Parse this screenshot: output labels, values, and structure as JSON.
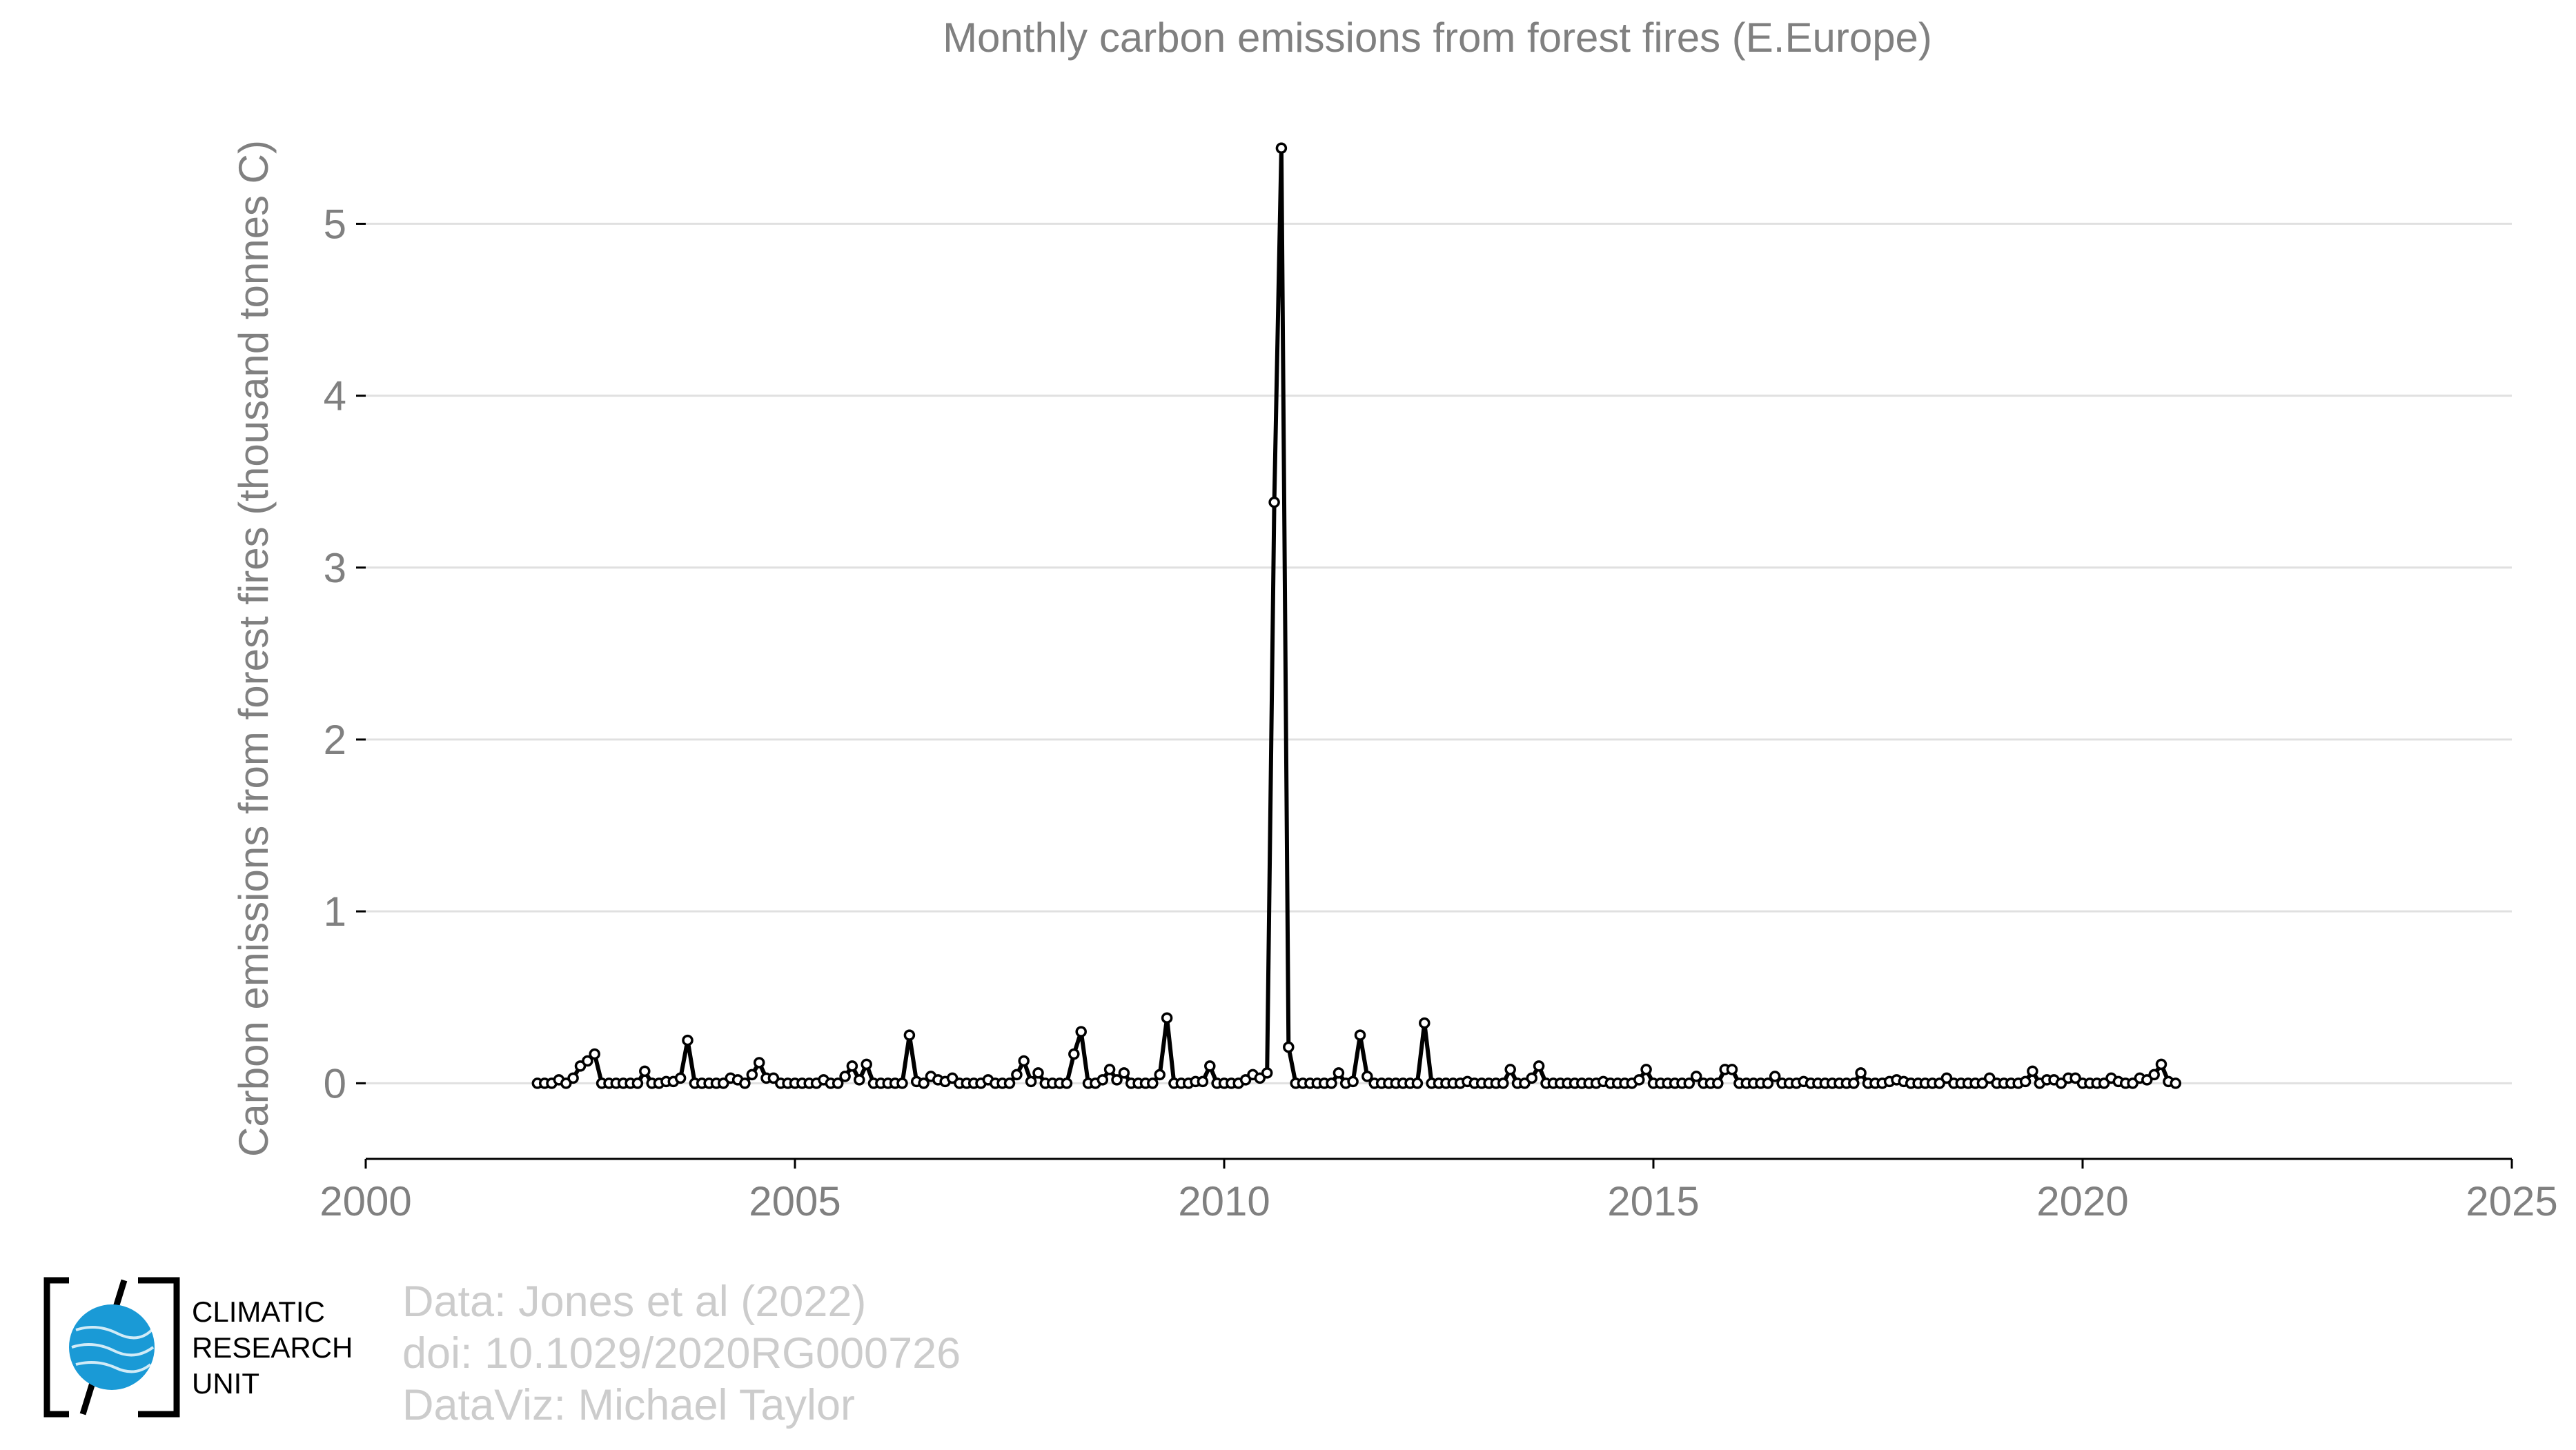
{
  "chart_data": {
    "type": "line",
    "title": "Monthly carbon emissions from forest fires (E.Europe)",
    "xlabel": "",
    "ylabel": "Carbon emissions from forest fires (thousand tonnes C)",
    "xlim": [
      2000,
      2025
    ],
    "ylim": [
      -0.44,
      5.7
    ],
    "x_ticks": [
      2000,
      2005,
      2010,
      2015,
      2020,
      2025
    ],
    "y_ticks": [
      0,
      1,
      2,
      3,
      4,
      5
    ],
    "grid": "horizontal",
    "legend": "none",
    "line_color": "#000000",
    "marker_fill": "#ffffff",
    "x_start": 2002.0,
    "x_step_months": 1,
    "values": [
      0.0,
      0.0,
      0.0,
      0.02,
      0.0,
      0.03,
      0.1,
      0.13,
      0.17,
      0.0,
      0.0,
      0.0,
      0.0,
      0.0,
      0.0,
      0.07,
      0.0,
      0.0,
      0.01,
      0.01,
      0.03,
      0.25,
      0.0,
      0.0,
      0.0,
      0.0,
      0.0,
      0.03,
      0.02,
      0.0,
      0.05,
      0.12,
      0.03,
      0.03,
      0.0,
      0.0,
      0.0,
      0.0,
      0.0,
      0.0,
      0.02,
      0.0,
      0.0,
      0.04,
      0.1,
      0.02,
      0.11,
      0.0,
      0.0,
      0.0,
      0.0,
      0.0,
      0.28,
      0.01,
      0.0,
      0.04,
      0.02,
      0.01,
      0.03,
      0.0,
      0.0,
      0.0,
      0.0,
      0.02,
      0.0,
      0.0,
      0.0,
      0.05,
      0.13,
      0.01,
      0.06,
      0.0,
      0.0,
      0.0,
      0.0,
      0.17,
      0.3,
      0.0,
      0.0,
      0.02,
      0.08,
      0.02,
      0.06,
      0.0,
      0.0,
      0.0,
      0.0,
      0.05,
      0.38,
      0.0,
      0.0,
      0.0,
      0.01,
      0.01,
      0.1,
      0.0,
      0.0,
      0.0,
      0.0,
      0.02,
      0.05,
      0.03,
      0.06,
      3.38,
      5.44,
      0.21,
      0.0,
      0.0,
      0.0,
      0.0,
      0.0,
      0.0,
      0.06,
      0.0,
      0.01,
      0.28,
      0.04,
      0.0,
      0.0,
      0.0,
      0.0,
      0.0,
      0.0,
      0.0,
      0.35,
      0.0,
      0.0,
      0.0,
      0.0,
      0.0,
      0.01,
      0.0,
      0.0,
      0.0,
      0.0,
      0.0,
      0.08,
      0.0,
      0.0,
      0.03,
      0.1,
      0.0,
      0.0,
      0.0,
      0.0,
      0.0,
      0.0,
      0.0,
      0.0,
      0.01,
      0.0,
      0.0,
      0.0,
      0.0,
      0.02,
      0.08,
      0.0,
      0.0,
      0.0,
      0.0,
      0.0,
      0.0,
      0.04,
      0.0,
      0.0,
      0.0,
      0.08,
      0.08,
      0.0,
      0.0,
      0.0,
      0.0,
      0.0,
      0.04,
      0.0,
      0.0,
      0.0,
      0.01,
      0.0,
      0.0,
      0.0,
      0.0,
      0.0,
      0.0,
      0.0,
      0.06,
      0.0,
      0.0,
      0.0,
      0.01,
      0.02,
      0.01,
      0.0,
      0.0,
      0.0,
      0.0,
      0.0,
      0.03,
      0.0,
      0.0,
      0.0,
      0.0,
      0.0,
      0.03,
      0.0,
      0.0,
      0.0,
      0.0,
      0.01,
      0.07,
      0.0,
      0.02,
      0.02,
      0.0,
      0.03,
      0.03,
      0.0,
      0.0,
      0.0,
      0.0,
      0.03,
      0.01,
      0.0,
      0.0,
      0.03,
      0.02,
      0.05,
      0.11,
      0.01,
      0.0
    ]
  },
  "credits": {
    "line1": "Data: Jones et al (2022)",
    "line2": "doi: 10.1029/2020RG000726",
    "line3": "DataViz: Michael Taylor"
  },
  "logo": {
    "line1": "CLIMATIC",
    "line2": "RESEARCH",
    "line3": "UNIT",
    "globe_color": "#1a9ad6"
  }
}
